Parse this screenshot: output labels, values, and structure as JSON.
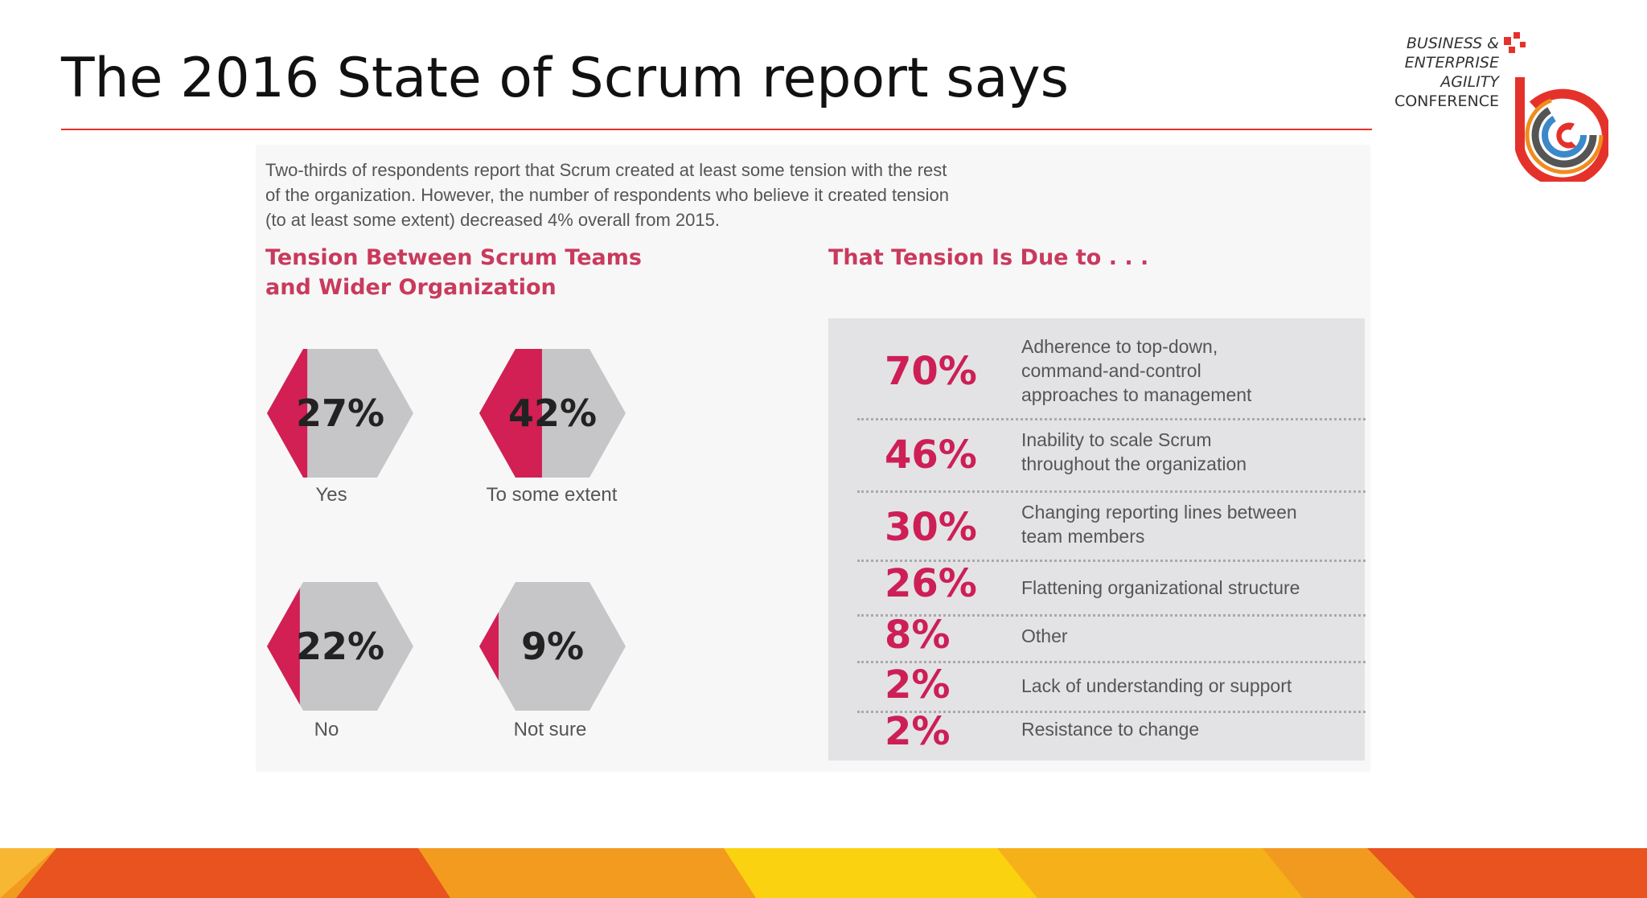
{
  "slide": {
    "title": "The 2016 State of Scrum report says"
  },
  "logo": {
    "line1": "BUSINESS &",
    "line2": "ENTERPRISE",
    "line3": "AGILITY",
    "line4": "CONFERENCE",
    "colors": {
      "ring": "#e4322b",
      "accent": "#f08c1e",
      "grey": "#555555",
      "blue": "#3b89c9"
    }
  },
  "infographic": {
    "intro_lines": [
      "Two-thirds of respondents report that Scrum created at least some tension with the rest",
      "of the organization. However, the number of respondents who believe it created tension",
      "(to at least some extent) decreased 4% overall from 2015."
    ],
    "left_heading": [
      "Tension Between Scrum Teams",
      "and Wider Organization"
    ],
    "right_heading": "That Tension Is Due to . . ."
  },
  "chart_data": [
    {
      "type": "bar",
      "title": "Tension Between Scrum Teams and Wider Organization",
      "categories": [
        "Yes",
        "To some extent",
        "No",
        "Not sure"
      ],
      "values": [
        27,
        42,
        22,
        9
      ],
      "labels": [
        "27%",
        "42%",
        "22%",
        "9%"
      ],
      "unit": "%",
      "colors": {
        "fill": "#d21f54",
        "base": "#c6c6c8"
      }
    },
    {
      "type": "table",
      "title": "That Tension Is Due to . . .",
      "rows": [
        {
          "value": 70,
          "label": "70%",
          "text": [
            "Adherence to top-down,",
            "command-and-control",
            "approaches to management"
          ]
        },
        {
          "value": 46,
          "label": "46%",
          "text": [
            "Inability to scale Scrum",
            "throughout the organization"
          ]
        },
        {
          "value": 30,
          "label": "30%",
          "text": [
            "Changing reporting lines between",
            "team members"
          ]
        },
        {
          "value": 26,
          "label": "26%",
          "text": [
            "Flattening organizational structure"
          ]
        },
        {
          "value": 8,
          "label": "8%",
          "text": [
            "Other"
          ]
        },
        {
          "value": 2,
          "label": "2%",
          "text": [
            "Lack of understanding or support"
          ]
        },
        {
          "value": 2,
          "label": "2%",
          "text": [
            "Resistance to change"
          ]
        }
      ],
      "colors": {
        "value": "#cd1f56",
        "panel": "#e3e3e5"
      }
    }
  ]
}
